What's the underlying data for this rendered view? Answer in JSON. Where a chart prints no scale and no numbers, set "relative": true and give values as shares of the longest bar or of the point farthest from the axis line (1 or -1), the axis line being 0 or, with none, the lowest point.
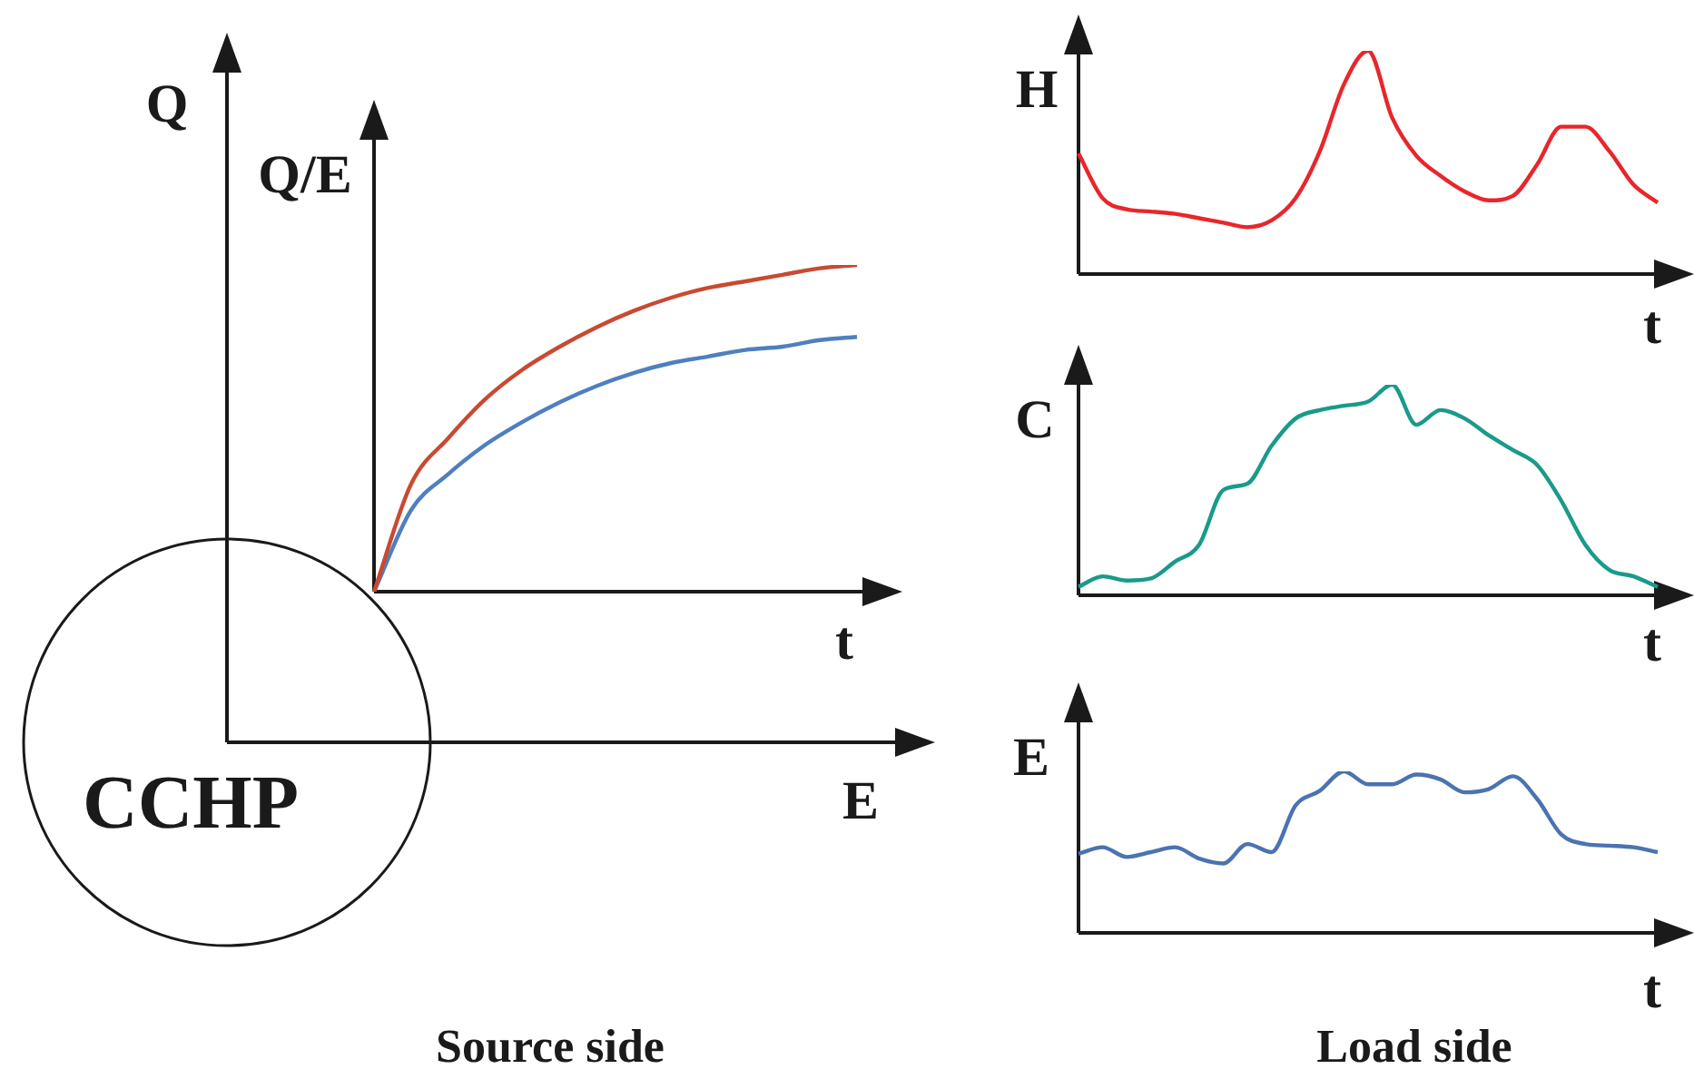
{
  "chart_data": [
    {
      "type": "line",
      "relative": true,
      "marker": "none",
      "xlabel": "t",
      "ylabel": "Q/E",
      "annotations": [
        "Q",
        "E",
        "CCHP",
        "Source side"
      ],
      "categories": [
        null,
        null,
        null,
        null,
        null,
        null,
        null,
        null,
        null,
        null,
        null,
        null,
        null,
        null
      ],
      "series": [
        {
          "color": "#c84a32",
          "values": [
            0,
            0.33,
            0.47,
            0.59,
            0.68,
            0.75,
            0.81,
            0.86,
            0.9,
            0.93,
            0.95,
            0.97,
            0.99,
            1.0
          ]
        },
        {
          "color": "#4f7fbf",
          "values": [
            0,
            0.25,
            0.36,
            0.45,
            0.52,
            0.58,
            0.63,
            0.67,
            0.7,
            0.72,
            0.74,
            0.75,
            0.77,
            0.78
          ]
        }
      ]
    },
    {
      "type": "line",
      "relative": true,
      "marker": "none",
      "xlabel": "t",
      "ylabel": "H",
      "categories": [
        null,
        null,
        null,
        null,
        null,
        null,
        null,
        null,
        null,
        null,
        null,
        null,
        null,
        null,
        null,
        null,
        null,
        null,
        null,
        null,
        null,
        null,
        null,
        null,
        null
      ],
      "series": [
        {
          "color": "#e8262b",
          "values": [
            0.54,
            0.34,
            0.29,
            0.28,
            0.27,
            0.25,
            0.23,
            0.21,
            0.24,
            0.34,
            0.55,
            0.85,
            1.0,
            0.7,
            0.53,
            0.44,
            0.37,
            0.33,
            0.35,
            0.49,
            0.66,
            0.66,
            0.55,
            0.4,
            0.32
          ]
        }
      ]
    },
    {
      "type": "line",
      "relative": true,
      "marker": "none",
      "xlabel": "t",
      "ylabel": "C",
      "categories": [
        null,
        null,
        null,
        null,
        null,
        null,
        null,
        null,
        null,
        null,
        null,
        null,
        null,
        null,
        null,
        null,
        null,
        null,
        null,
        null,
        null,
        null,
        null,
        null,
        null
      ],
      "series": [
        {
          "color": "#1a9a8a",
          "values": [
            0.04,
            0.09,
            0.07,
            0.08,
            0.16,
            0.24,
            0.5,
            0.53,
            0.71,
            0.84,
            0.88,
            0.9,
            0.92,
            1.0,
            0.81,
            0.88,
            0.84,
            0.76,
            0.69,
            0.62,
            0.45,
            0.24,
            0.12,
            0.09,
            0.04
          ]
        }
      ]
    },
    {
      "type": "line",
      "relative": true,
      "marker": "none",
      "xlabel": "t",
      "ylabel": "E",
      "annotations": [
        "Load side"
      ],
      "categories": [
        null,
        null,
        null,
        null,
        null,
        null,
        null,
        null,
        null,
        null,
        null,
        null,
        null,
        null,
        null,
        null,
        null,
        null,
        null,
        null,
        null,
        null,
        null,
        null,
        null
      ],
      "series": [
        {
          "color": "#4a73b0",
          "values": [
            0.49,
            0.53,
            0.47,
            0.5,
            0.53,
            0.46,
            0.43,
            0.55,
            0.5,
            0.79,
            0.88,
            1.0,
            0.92,
            0.92,
            0.98,
            0.95,
            0.87,
            0.89,
            0.97,
            0.83,
            0.61,
            0.55,
            0.54,
            0.53,
            0.5
          ]
        }
      ]
    }
  ]
}
